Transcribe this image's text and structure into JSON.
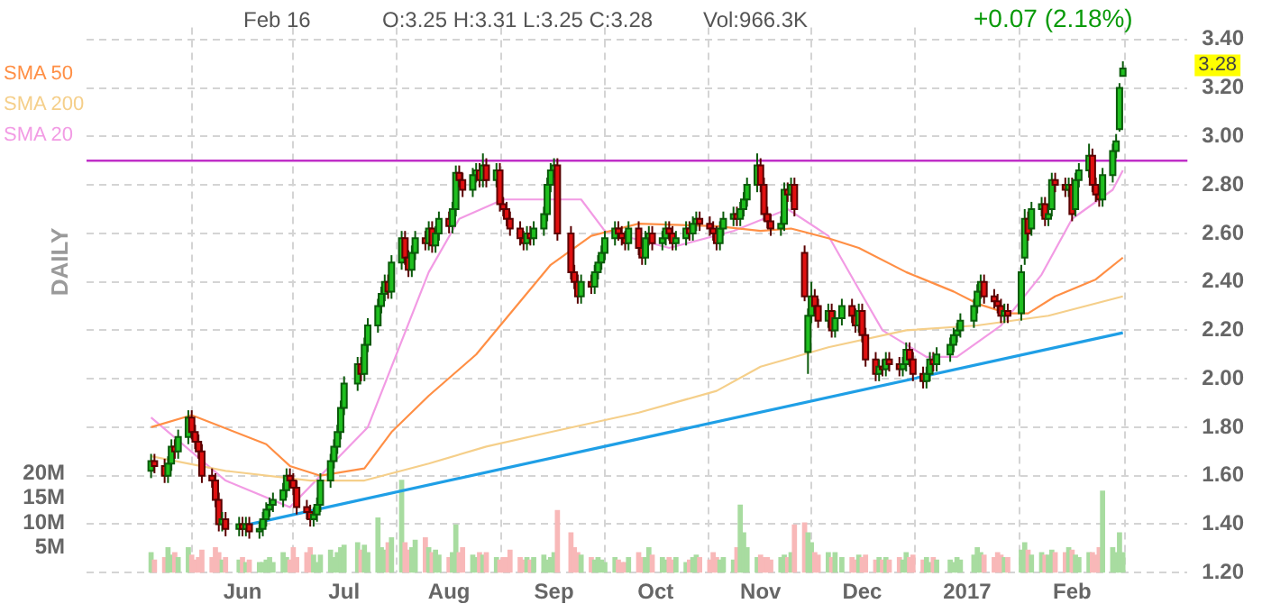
{
  "chart_data": {
    "type": "candlestick",
    "annotations": [
      "Feb 16",
      "O:3.25  H:3.31  L:3.25  C:3.28",
      "Vol:966.3K",
      "+0.07 (2.18%)",
      "DAILY",
      "3.28"
    ],
    "x": [
      "2016-05-05",
      "2016-05-06",
      "2016-05-09",
      "2016-05-10",
      "2016-05-11",
      "2016-05-12",
      "2016-05-13",
      "2016-05-16",
      "2016-05-17",
      "2016-05-18",
      "2016-05-19",
      "2016-05-20",
      "2016-05-23",
      "2016-05-24",
      "2016-05-25",
      "2016-05-26",
      "2016-05-27",
      "2016-05-31",
      "2016-06-01",
      "2016-06-02",
      "2016-06-03",
      "2016-06-06",
      "2016-06-07",
      "2016-06-08",
      "2016-06-09",
      "2016-06-10",
      "2016-06-13",
      "2016-06-14",
      "2016-06-15",
      "2016-06-16",
      "2016-06-17",
      "2016-06-20",
      "2016-06-21",
      "2016-06-22",
      "2016-06-23",
      "2016-06-24",
      "2016-06-27",
      "2016-06-28",
      "2016-06-29",
      "2016-06-30",
      "2016-07-01",
      "2016-07-05",
      "2016-07-06",
      "2016-07-07",
      "2016-07-08",
      "2016-07-11",
      "2016-07-12",
      "2016-07-13",
      "2016-07-14",
      "2016-07-15",
      "2016-07-18",
      "2016-07-19",
      "2016-07-20",
      "2016-07-21",
      "2016-07-22",
      "2016-07-25",
      "2016-07-26",
      "2016-07-27",
      "2016-07-28",
      "2016-07-29",
      "2016-08-01",
      "2016-08-02",
      "2016-08-03",
      "2016-08-04",
      "2016-08-05",
      "2016-08-08",
      "2016-08-09",
      "2016-08-10",
      "2016-08-11",
      "2016-08-12",
      "2016-08-15",
      "2016-08-16",
      "2016-08-17",
      "2016-08-18",
      "2016-08-19",
      "2016-08-22",
      "2016-08-23",
      "2016-08-24",
      "2016-08-25",
      "2016-08-26",
      "2016-08-29",
      "2016-08-30",
      "2016-08-31",
      "2016-09-01",
      "2016-09-02",
      "2016-09-06",
      "2016-09-07",
      "2016-09-08",
      "2016-09-09",
      "2016-09-12",
      "2016-09-13",
      "2016-09-14",
      "2016-09-15",
      "2016-09-16",
      "2016-09-19",
      "2016-09-20",
      "2016-09-21",
      "2016-09-22",
      "2016-09-23",
      "2016-09-26",
      "2016-09-27",
      "2016-09-28",
      "2016-09-29",
      "2016-09-30",
      "2016-10-03",
      "2016-10-04",
      "2016-10-05",
      "2016-10-06",
      "2016-10-07",
      "2016-10-10",
      "2016-10-11",
      "2016-10-12",
      "2016-10-13",
      "2016-10-14",
      "2016-10-17",
      "2016-10-18",
      "2016-10-19",
      "2016-10-20",
      "2016-10-21",
      "2016-10-24",
      "2016-10-25",
      "2016-10-26",
      "2016-10-27",
      "2016-10-28",
      "2016-10-31",
      "2016-11-01",
      "2016-11-02",
      "2016-11-03",
      "2016-11-04",
      "2016-11-07",
      "2016-11-08",
      "2016-11-09",
      "2016-11-10",
      "2016-11-11",
      "2016-11-14",
      "2016-11-15",
      "2016-11-16",
      "2016-11-17",
      "2016-11-18",
      "2016-11-21",
      "2016-11-22",
      "2016-11-23",
      "2016-11-25",
      "2016-11-28",
      "2016-11-29",
      "2016-11-30",
      "2016-12-01",
      "2016-12-02",
      "2016-12-05",
      "2016-12-06",
      "2016-12-07",
      "2016-12-08",
      "2016-12-09",
      "2016-12-12",
      "2016-12-13",
      "2016-12-14",
      "2016-12-15",
      "2016-12-16",
      "2016-12-19",
      "2016-12-20",
      "2016-12-21",
      "2016-12-22",
      "2016-12-23",
      "2016-12-27",
      "2016-12-28",
      "2016-12-29",
      "2016-12-30",
      "2017-01-03",
      "2017-01-04",
      "2017-01-05",
      "2017-01-06",
      "2017-01-09",
      "2017-01-10",
      "2017-01-11",
      "2017-01-12",
      "2017-01-13",
      "2017-01-17",
      "2017-01-18",
      "2017-01-19",
      "2017-01-20",
      "2017-01-23",
      "2017-01-24",
      "2017-01-25",
      "2017-01-26",
      "2017-01-27",
      "2017-01-30",
      "2017-01-31",
      "2017-02-01",
      "2017-02-02",
      "2017-02-03",
      "2017-02-06",
      "2017-02-07",
      "2017-02-08",
      "2017-02-09",
      "2017-02-10",
      "2017-02-13",
      "2017-02-14",
      "2017-02-15",
      "2017-02-16"
    ],
    "ohlc": [
      [
        1.62,
        1.69,
        1.59,
        1.66
      ],
      [
        1.66,
        1.69,
        1.61,
        1.64
      ],
      [
        1.64,
        1.67,
        1.57,
        1.6
      ],
      [
        1.6,
        1.68,
        1.57,
        1.65
      ],
      [
        1.65,
        1.75,
        1.62,
        1.72
      ],
      [
        1.72,
        1.75,
        1.67,
        1.7
      ],
      [
        1.7,
        1.79,
        1.67,
        1.76
      ],
      [
        1.76,
        1.87,
        1.73,
        1.84
      ],
      [
        1.84,
        1.87,
        1.75,
        1.78
      ],
      [
        1.78,
        1.81,
        1.71,
        1.74
      ],
      [
        1.74,
        1.77,
        1.67,
        1.7
      ],
      [
        1.7,
        1.73,
        1.57,
        1.6
      ],
      [
        1.6,
        1.63,
        1.55,
        1.58
      ],
      [
        1.58,
        1.61,
        1.47,
        1.5
      ],
      [
        1.5,
        1.53,
        1.37,
        1.4
      ],
      [
        1.4,
        1.45,
        1.37,
        1.42
      ],
      [
        1.42,
        1.45,
        1.35,
        1.38
      ],
      [
        1.38,
        1.43,
        1.35,
        1.4
      ],
      [
        1.4,
        1.43,
        1.35,
        1.38
      ],
      [
        1.38,
        1.43,
        1.35,
        1.4
      ],
      [
        1.4,
        1.43,
        1.34,
        1.37
      ],
      [
        1.37,
        1.41,
        1.34,
        1.38
      ],
      [
        1.38,
        1.45,
        1.35,
        1.42
      ],
      [
        1.42,
        1.49,
        1.39,
        1.46
      ],
      [
        1.46,
        1.51,
        1.43,
        1.48
      ],
      [
        1.48,
        1.53,
        1.45,
        1.5
      ],
      [
        1.5,
        1.57,
        1.47,
        1.54
      ],
      [
        1.54,
        1.63,
        1.51,
        1.6
      ],
      [
        1.6,
        1.63,
        1.55,
        1.58
      ],
      [
        1.58,
        1.61,
        1.52,
        1.55
      ],
      [
        1.55,
        1.58,
        1.44,
        1.47
      ],
      [
        1.47,
        1.5,
        1.42,
        1.45
      ],
      [
        1.45,
        1.48,
        1.39,
        1.42
      ],
      [
        1.42,
        1.47,
        1.39,
        1.44
      ],
      [
        1.44,
        1.51,
        1.41,
        1.48
      ],
      [
        1.48,
        1.61,
        1.45,
        1.58
      ],
      [
        1.58,
        1.69,
        1.55,
        1.66
      ],
      [
        1.66,
        1.75,
        1.63,
        1.72
      ],
      [
        1.72,
        1.81,
        1.69,
        1.78
      ],
      [
        1.78,
        1.91,
        1.75,
        1.88
      ],
      [
        1.88,
        2.01,
        1.85,
        1.98
      ],
      [
        1.98,
        2.09,
        1.95,
        2.06
      ],
      [
        2.06,
        2.09,
        1.99,
        2.02
      ],
      [
        2.02,
        2.17,
        1.99,
        2.14
      ],
      [
        2.14,
        2.25,
        2.11,
        2.22
      ],
      [
        2.22,
        2.33,
        2.19,
        2.3
      ],
      [
        2.3,
        2.38,
        2.27,
        2.35
      ],
      [
        2.35,
        2.43,
        2.32,
        2.4
      ],
      [
        2.4,
        2.43,
        2.33,
        2.36
      ],
      [
        2.36,
        2.51,
        2.33,
        2.48
      ],
      [
        2.48,
        2.61,
        2.45,
        2.58
      ],
      [
        2.58,
        2.61,
        2.47,
        2.5
      ],
      [
        2.5,
        2.53,
        2.42,
        2.45
      ],
      [
        2.45,
        2.55,
        2.42,
        2.52
      ],
      [
        2.52,
        2.61,
        2.49,
        2.58
      ],
      [
        2.58,
        2.61,
        2.53,
        2.56
      ],
      [
        2.56,
        2.65,
        2.53,
        2.62
      ],
      [
        2.62,
        2.65,
        2.52,
        2.55
      ],
      [
        2.55,
        2.63,
        2.52,
        2.6
      ],
      [
        2.6,
        2.69,
        2.57,
        2.66
      ],
      [
        2.66,
        2.69,
        2.6,
        2.63
      ],
      [
        2.63,
        2.73,
        2.6,
        2.7
      ],
      [
        2.7,
        2.88,
        2.67,
        2.85
      ],
      [
        2.85,
        2.88,
        2.79,
        2.82
      ],
      [
        2.82,
        2.85,
        2.75,
        2.78
      ],
      [
        2.78,
        2.87,
        2.75,
        2.84
      ],
      [
        2.84,
        2.89,
        2.81,
        2.86
      ],
      [
        2.86,
        2.89,
        2.79,
        2.82
      ],
      [
        2.82,
        2.93,
        2.79,
        2.88
      ],
      [
        2.88,
        2.91,
        2.79,
        2.82
      ],
      [
        2.82,
        2.89,
        2.79,
        2.86
      ],
      [
        2.86,
        2.89,
        2.69,
        2.72
      ],
      [
        2.72,
        2.75,
        2.67,
        2.7
      ],
      [
        2.7,
        2.73,
        2.63,
        2.66
      ],
      [
        2.66,
        2.69,
        2.59,
        2.62
      ],
      [
        2.62,
        2.65,
        2.55,
        2.58
      ],
      [
        2.58,
        2.61,
        2.53,
        2.56
      ],
      [
        2.56,
        2.63,
        2.53,
        2.6
      ],
      [
        2.6,
        2.63,
        2.55,
        2.58
      ],
      [
        2.58,
        2.65,
        2.55,
        2.62
      ],
      [
        2.62,
        2.71,
        2.59,
        2.68
      ],
      [
        2.68,
        2.83,
        2.65,
        2.8
      ],
      [
        2.8,
        2.89,
        2.77,
        2.86
      ],
      [
        2.86,
        2.91,
        2.83,
        2.88
      ],
      [
        2.88,
        2.91,
        2.57,
        2.6
      ],
      [
        2.6,
        2.63,
        2.41,
        2.44
      ],
      [
        2.44,
        2.47,
        2.37,
        2.4
      ],
      [
        2.4,
        2.43,
        2.31,
        2.34
      ],
      [
        2.34,
        2.43,
        2.31,
        2.4
      ],
      [
        2.4,
        2.43,
        2.35,
        2.38
      ],
      [
        2.38,
        2.47,
        2.35,
        2.44
      ],
      [
        2.44,
        2.51,
        2.41,
        2.48
      ],
      [
        2.48,
        2.55,
        2.45,
        2.52
      ],
      [
        2.52,
        2.61,
        2.49,
        2.58
      ],
      [
        2.58,
        2.65,
        2.55,
        2.62
      ],
      [
        2.62,
        2.65,
        2.57,
        2.6
      ],
      [
        2.6,
        2.63,
        2.55,
        2.58
      ],
      [
        2.58,
        2.61,
        2.53,
        2.56
      ],
      [
        2.56,
        2.65,
        2.53,
        2.62
      ],
      [
        2.62,
        2.65,
        2.51,
        2.54
      ],
      [
        2.54,
        2.57,
        2.47,
        2.5
      ],
      [
        2.5,
        2.61,
        2.47,
        2.58
      ],
      [
        2.58,
        2.63,
        2.55,
        2.6
      ],
      [
        2.6,
        2.63,
        2.53,
        2.56
      ],
      [
        2.56,
        2.61,
        2.53,
        2.58
      ],
      [
        2.58,
        2.65,
        2.55,
        2.62
      ],
      [
        2.62,
        2.65,
        2.57,
        2.6
      ],
      [
        2.6,
        2.63,
        2.53,
        2.56
      ],
      [
        2.56,
        2.61,
        2.53,
        2.58
      ],
      [
        2.58,
        2.65,
        2.55,
        2.62
      ],
      [
        2.62,
        2.65,
        2.57,
        2.6
      ],
      [
        2.6,
        2.67,
        2.57,
        2.64
      ],
      [
        2.64,
        2.69,
        2.61,
        2.66
      ],
      [
        2.66,
        2.69,
        2.61,
        2.64
      ],
      [
        2.64,
        2.67,
        2.59,
        2.62
      ],
      [
        2.62,
        2.65,
        2.57,
        2.6
      ],
      [
        2.6,
        2.63,
        2.53,
        2.56
      ],
      [
        2.56,
        2.65,
        2.53,
        2.62
      ],
      [
        2.62,
        2.69,
        2.59,
        2.66
      ],
      [
        2.66,
        2.71,
        2.63,
        2.68
      ],
      [
        2.68,
        2.71,
        2.63,
        2.66
      ],
      [
        2.66,
        2.73,
        2.63,
        2.7
      ],
      [
        2.7,
        2.77,
        2.67,
        2.74
      ],
      [
        2.74,
        2.83,
        2.71,
        2.8
      ],
      [
        2.8,
        2.93,
        2.77,
        2.88
      ],
      [
        2.88,
        2.91,
        2.77,
        2.8
      ],
      [
        2.8,
        2.83,
        2.65,
        2.68
      ],
      [
        2.68,
        2.71,
        2.62,
        2.65
      ],
      [
        2.65,
        2.68,
        2.59,
        2.62
      ],
      [
        2.62,
        2.67,
        2.59,
        2.64
      ],
      [
        2.64,
        2.81,
        2.61,
        2.78
      ],
      [
        2.78,
        2.81,
        2.73,
        2.76
      ],
      [
        2.76,
        2.83,
        2.73,
        2.8
      ],
      [
        2.8,
        2.83,
        2.67,
        2.7
      ],
      [
        2.52,
        2.55,
        2.32,
        2.34
      ],
      [
        2.11,
        2.29,
        2.02,
        2.26
      ],
      [
        2.26,
        2.4,
        2.23,
        2.34
      ],
      [
        2.34,
        2.37,
        2.27,
        2.3
      ],
      [
        2.3,
        2.33,
        2.21,
        2.24
      ],
      [
        2.24,
        2.31,
        2.21,
        2.28
      ],
      [
        2.28,
        2.31,
        2.17,
        2.2
      ],
      [
        2.2,
        2.28,
        2.17,
        2.25
      ],
      [
        2.25,
        2.33,
        2.22,
        2.3
      ],
      [
        2.3,
        2.33,
        2.23,
        2.26
      ],
      [
        2.26,
        2.29,
        2.19,
        2.22
      ],
      [
        2.22,
        2.31,
        2.19,
        2.28
      ],
      [
        2.28,
        2.31,
        2.15,
        2.18
      ],
      [
        2.18,
        2.21,
        2.05,
        2.08
      ],
      [
        2.08,
        2.11,
        1.99,
        2.02
      ],
      [
        2.02,
        2.08,
        1.99,
        2.05
      ],
      [
        2.05,
        2.08,
        2.01,
        2.04
      ],
      [
        2.04,
        2.11,
        2.01,
        2.08
      ],
      [
        2.08,
        2.11,
        2.03,
        2.06
      ],
      [
        2.06,
        2.09,
        2.01,
        2.04
      ],
      [
        2.04,
        2.09,
        2.01,
        2.06
      ],
      [
        2.06,
        2.15,
        2.03,
        2.12
      ],
      [
        2.12,
        2.15,
        2.05,
        2.08
      ],
      [
        2.08,
        2.11,
        1.99,
        2.02
      ],
      [
        2.02,
        2.05,
        1.96,
        1.99
      ],
      [
        1.99,
        2.05,
        1.96,
        2.02
      ],
      [
        2.02,
        2.11,
        1.99,
        2.08
      ],
      [
        2.08,
        2.11,
        2.03,
        2.06
      ],
      [
        2.06,
        2.13,
        2.03,
        2.1
      ],
      [
        2.1,
        2.17,
        2.07,
        2.14
      ],
      [
        2.14,
        2.21,
        2.11,
        2.18
      ],
      [
        2.18,
        2.23,
        2.15,
        2.2
      ],
      [
        2.2,
        2.27,
        2.17,
        2.24
      ],
      [
        2.24,
        2.33,
        2.21,
        2.3
      ],
      [
        2.3,
        2.39,
        2.27,
        2.36
      ],
      [
        2.36,
        2.43,
        2.33,
        2.4
      ],
      [
        2.4,
        2.43,
        2.31,
        2.34
      ],
      [
        2.34,
        2.37,
        2.29,
        2.32
      ],
      [
        2.32,
        2.35,
        2.27,
        2.3
      ],
      [
        2.3,
        2.33,
        2.23,
        2.26
      ],
      [
        2.26,
        2.31,
        2.23,
        2.28
      ],
      [
        2.28,
        2.31,
        2.23,
        2.26
      ],
      [
        2.27,
        2.47,
        2.24,
        2.44
      ],
      [
        2.5,
        2.7,
        2.47,
        2.66
      ],
      [
        2.66,
        2.69,
        2.57,
        2.6
      ],
      [
        2.62,
        2.73,
        2.59,
        2.7
      ],
      [
        2.7,
        2.75,
        2.67,
        2.72
      ],
      [
        2.72,
        2.75,
        2.63,
        2.66
      ],
      [
        2.66,
        2.71,
        2.63,
        2.68
      ],
      [
        2.7,
        2.85,
        2.67,
        2.82
      ],
      [
        2.82,
        2.85,
        2.77,
        2.8
      ],
      [
        2.8,
        2.83,
        2.75,
        2.78
      ],
      [
        2.78,
        2.83,
        2.75,
        2.8
      ],
      [
        2.8,
        2.83,
        2.65,
        2.68
      ],
      [
        2.7,
        2.85,
        2.67,
        2.82
      ],
      [
        2.82,
        2.89,
        2.79,
        2.86
      ],
      [
        2.86,
        2.97,
        2.83,
        2.92
      ],
      [
        2.92,
        2.95,
        2.77,
        2.8
      ],
      [
        2.8,
        2.83,
        2.73,
        2.76
      ],
      [
        2.76,
        2.79,
        2.71,
        2.74
      ],
      [
        2.74,
        2.87,
        2.71,
        2.84
      ],
      [
        2.84,
        2.97,
        2.81,
        2.94
      ],
      [
        2.94,
        3.01,
        2.91,
        2.98
      ],
      [
        3.03,
        3.22,
        3.02,
        3.2
      ],
      [
        3.25,
        3.31,
        3.25,
        3.28
      ]
    ],
    "series": [
      {
        "name": "SMA 50",
        "type": "line",
        "color": "#ff8f45",
        "x": [
          "2016-05-05",
          "2016-05-17",
          "2016-06-08",
          "2016-06-15",
          "2016-06-24",
          "2016-07-07",
          "2016-07-15",
          "2016-07-26",
          "2016-08-09",
          "2016-08-31",
          "2016-09-12",
          "2016-09-26",
          "2016-10-19",
          "2016-11-01",
          "2016-11-10",
          "2016-11-21",
          "2016-11-30",
          "2016-12-14",
          "2016-12-28",
          "2017-01-04",
          "2017-01-13",
          "2017-01-19",
          "2017-01-27",
          "2017-02-08",
          "2017-02-16"
        ],
        "values": [
          1.8,
          1.85,
          1.73,
          1.64,
          1.6,
          1.63,
          1.78,
          1.93,
          2.1,
          2.47,
          2.59,
          2.64,
          2.63,
          2.61,
          2.62,
          2.58,
          2.54,
          2.44,
          2.36,
          2.31,
          2.27,
          2.27,
          2.34,
          2.41,
          2.5
        ]
      },
      {
        "name": "SMA 200",
        "type": "line",
        "color": "#f5cf8a",
        "x": [
          "2016-05-05",
          "2016-05-27",
          "2016-06-21",
          "2016-07-07",
          "2016-07-26",
          "2016-08-12",
          "2016-08-31",
          "2016-09-26",
          "2016-10-19",
          "2016-11-01",
          "2016-11-21",
          "2016-12-14",
          "2017-01-04",
          "2017-01-25",
          "2017-02-16"
        ],
        "values": [
          1.68,
          1.62,
          1.58,
          1.58,
          1.65,
          1.72,
          1.78,
          1.86,
          1.95,
          2.05,
          2.13,
          2.2,
          2.22,
          2.26,
          2.34
        ]
      },
      {
        "name": "SMA 20",
        "type": "line",
        "color": "#f29be4",
        "x": [
          "2016-05-05",
          "2016-05-27",
          "2016-06-15",
          "2016-07-08",
          "2016-07-26",
          "2016-08-04",
          "2016-08-17",
          "2016-09-09",
          "2016-09-16",
          "2016-10-05",
          "2016-10-24",
          "2016-11-09",
          "2016-11-21",
          "2016-11-30",
          "2016-12-07",
          "2016-12-20",
          "2016-12-29",
          "2017-01-11",
          "2017-01-23",
          "2017-02-01",
          "2017-02-13",
          "2017-02-16"
        ],
        "values": [
          1.84,
          1.58,
          1.47,
          1.8,
          2.44,
          2.66,
          2.74,
          2.74,
          2.61,
          2.54,
          2.61,
          2.7,
          2.59,
          2.37,
          2.2,
          2.09,
          2.09,
          2.22,
          2.43,
          2.66,
          2.78,
          2.86
        ]
      },
      {
        "type": "line",
        "color": "#1f9fe6",
        "x": [
          "2016-05-31",
          "2017-02-16"
        ],
        "values": [
          1.39,
          2.19
        ]
      },
      {
        "type": "bar",
        "axis": "y2",
        "values": [
          4,
          2.5,
          3,
          5,
          3.5,
          4,
          3,
          5,
          3.5,
          2.5,
          3,
          4.5,
          3,
          5,
          4,
          2.5,
          3,
          2.5,
          3,
          2,
          2.5,
          2,
          2,
          2.5,
          3,
          2,
          4,
          3,
          2.5,
          5,
          3,
          4,
          5,
          3.5,
          2,
          3.5,
          4.5,
          3,
          4,
          5,
          5.5,
          6,
          4.5,
          5.5,
          4,
          11,
          5,
          4.5,
          6,
          7,
          18.6,
          6,
          4.5,
          5,
          6.5,
          7,
          5,
          4,
          4.5,
          3.5,
          3,
          4,
          9.6,
          4,
          5,
          3.5,
          3,
          4,
          3.5,
          4,
          3,
          2.5,
          3,
          3,
          4.5,
          3,
          2.5,
          3,
          2.5,
          3,
          3.5,
          2.5,
          3,
          4,
          12.5,
          8,
          5,
          4,
          3.5,
          3,
          2.5,
          3,
          2.5,
          2,
          3,
          2.5,
          2,
          2,
          3,
          4,
          3,
          3,
          5,
          3.5,
          3,
          2.5,
          3,
          2.5,
          3,
          2,
          2.5,
          3,
          3.5,
          3,
          2.5,
          4,
          3,
          2.5,
          3,
          2.5,
          5,
          13.6,
          8,
          5,
          3,
          3.5,
          3,
          3,
          2.5,
          3,
          3.5,
          3,
          4,
          9.6,
          10,
          8,
          6,
          4,
          3.5,
          4,
          3,
          4,
          3,
          3,
          2.5,
          3.5,
          3,
          3.5,
          2.5,
          3,
          2.5,
          3,
          2.5,
          3,
          2.5,
          4,
          3,
          3.5,
          2.5,
          3,
          2,
          3,
          2.5,
          2.5,
          2,
          3,
          2.5,
          3.5,
          5,
          4,
          3.5,
          3,
          4,
          3.5,
          3,
          3,
          4.5,
          6,
          4.5,
          3.5,
          4,
          3.5,
          3.5,
          4.5,
          4,
          4,
          5,
          4.5,
          3.5,
          3,
          4,
          4,
          3.5,
          5,
          16.4,
          5,
          4,
          8,
          4
        ],
        "colors": [
          "#a8dca0",
          "#f8b8b8",
          "#f8b8b8",
          "#a8dca0",
          "#a8dca0",
          "#f8b8b8",
          "#a8dca0",
          "#a8dca0",
          "#f8b8b8",
          "#f8b8b8",
          "#f8b8b8",
          "#f8b8b8",
          "#f8b8b8",
          "#f8b8b8",
          "#f8b8b8",
          "#a8dca0",
          "#f8b8b8",
          "#a8dca0",
          "#f8b8b8",
          "#a8dca0",
          "#f8b8b8",
          "#a8dca0",
          "#a8dca0",
          "#a8dca0",
          "#a8dca0",
          "#a8dca0",
          "#a8dca0",
          "#a8dca0",
          "#f8b8b8",
          "#f8b8b8",
          "#f8b8b8",
          "#f8b8b8",
          "#f8b8b8",
          "#a8dca0",
          "#a8dca0",
          "#a8dca0",
          "#a8dca0",
          "#a8dca0",
          "#a8dca0",
          "#a8dca0",
          "#a8dca0",
          "#a8dca0",
          "#f8b8b8",
          "#a8dca0",
          "#a8dca0",
          "#a8dca0",
          "#a8dca0",
          "#a8dca0",
          "#f8b8b8",
          "#a8dca0",
          "#a8dca0",
          "#f8b8b8",
          "#f8b8b8",
          "#a8dca0",
          "#a8dca0",
          "#f8b8b8",
          "#a8dca0",
          "#f8b8b8",
          "#a8dca0",
          "#a8dca0",
          "#f8b8b8",
          "#a8dca0",
          "#a8dca0",
          "#f8b8b8",
          "#f8b8b8",
          "#a8dca0",
          "#a8dca0",
          "#f8b8b8",
          "#a8dca0",
          "#f8b8b8",
          "#a8dca0",
          "#f8b8b8",
          "#f8b8b8",
          "#f8b8b8",
          "#f8b8b8",
          "#f8b8b8",
          "#f8b8b8",
          "#a8dca0",
          "#f8b8b8",
          "#a8dca0",
          "#a8dca0",
          "#a8dca0",
          "#a8dca0",
          "#a8dca0",
          "#f8b8b8",
          "#f8b8b8",
          "#f8b8b8",
          "#f8b8b8",
          "#a8dca0",
          "#f8b8b8",
          "#a8dca0",
          "#a8dca0",
          "#a8dca0",
          "#a8dca0",
          "#a8dca0",
          "#f8b8b8",
          "#f8b8b8",
          "#f8b8b8",
          "#a8dca0",
          "#f8b8b8",
          "#f8b8b8",
          "#a8dca0",
          "#a8dca0",
          "#f8b8b8",
          "#a8dca0",
          "#a8dca0",
          "#f8b8b8",
          "#f8b8b8",
          "#a8dca0",
          "#a8dca0",
          "#f8b8b8",
          "#a8dca0",
          "#a8dca0",
          "#f8b8b8",
          "#f8b8b8",
          "#f8b8b8",
          "#f8b8b8",
          "#a8dca0",
          "#a8dca0",
          "#a8dca0",
          "#f8b8b8",
          "#a8dca0",
          "#a8dca0",
          "#a8dca0",
          "#a8dca0",
          "#f8b8b8",
          "#f8b8b8",
          "#f8b8b8",
          "#f8b8b8",
          "#a8dca0",
          "#a8dca0",
          "#f8b8b8",
          "#a8dca0",
          "#f8b8b8",
          "#f8b8b8",
          "#a8dca0",
          "#a8dca0",
          "#f8b8b8",
          "#f8b8b8",
          "#a8dca0",
          "#f8b8b8",
          "#a8dca0",
          "#a8dca0",
          "#f8b8b8",
          "#f8b8b8",
          "#a8dca0",
          "#f8b8b8",
          "#f8b8b8",
          "#f8b8b8",
          "#a8dca0",
          "#f8b8b8",
          "#a8dca0",
          "#f8b8b8",
          "#f8b8b8",
          "#a8dca0",
          "#a8dca0",
          "#f8b8b8",
          "#f8b8b8",
          "#f8b8b8",
          "#a8dca0",
          "#a8dca0",
          "#f8b8b8",
          "#a8dca0",
          "#a8dca0",
          "#a8dca0",
          "#a8dca0",
          "#a8dca0",
          "#a8dca0",
          "#a8dca0",
          "#a8dca0",
          "#f8b8b8",
          "#f8b8b8",
          "#f8b8b8",
          "#f8b8b8",
          "#a8dca0",
          "#f8b8b8",
          "#a8dca0",
          "#a8dca0",
          "#f8b8b8",
          "#a8dca0",
          "#a8dca0",
          "#f8b8b8",
          "#a8dca0",
          "#a8dca0",
          "#f8b8b8",
          "#f8b8b8",
          "#a8dca0",
          "#f8b8b8",
          "#a8dca0",
          "#a8dca0",
          "#a8dca0",
          "#f8b8b8",
          "#f8b8b8",
          "#f8b8b8",
          "#a8dca0",
          "#a8dca0",
          "#a8dca0",
          "#a8dca0",
          "#a8dca0"
        ]
      }
    ],
    "ref_lines": [
      {
        "axis": "y",
        "value": 2.9,
        "color": "#c030c8"
      }
    ],
    "xlim": [
      "2016-05-04",
      "2017-02-17"
    ],
    "xticks": [
      {
        "value": "2016-06-01",
        "label": "Jun"
      },
      {
        "value": "2016-07-01",
        "label": "Jul"
      },
      {
        "value": "2016-08-01",
        "label": "Aug"
      },
      {
        "value": "2016-09-01",
        "label": "Sep"
      },
      {
        "value": "2016-10-01",
        "label": "Oct"
      },
      {
        "value": "2016-11-01",
        "label": "Nov"
      },
      {
        "value": "2016-12-01",
        "label": "Dec"
      },
      {
        "value": "2017-01-01",
        "label": "2017"
      },
      {
        "value": "2017-02-01",
        "label": "Feb"
      }
    ],
    "ylim": [
      1.2,
      3.45
    ],
    "yticks": [
      {
        "value": 1.2,
        "label": "1.20"
      },
      {
        "value": 1.4,
        "label": "1.40"
      },
      {
        "value": 1.6,
        "label": "1.60"
      },
      {
        "value": 1.8,
        "label": "1.80"
      },
      {
        "value": 2.0,
        "label": "2.00"
      },
      {
        "value": 2.2,
        "label": "2.20"
      },
      {
        "value": 2.4,
        "label": "2.40"
      },
      {
        "value": 2.6,
        "label": "2.60"
      },
      {
        "value": 2.8,
        "label": "2.80"
      },
      {
        "value": 3.0,
        "label": "3.00"
      },
      {
        "value": 3.2,
        "label": "3.20"
      },
      {
        "value": 3.4,
        "label": "3.40"
      }
    ],
    "y2lim": [
      0,
      110
    ],
    "y2ticks": [
      {
        "value": 5,
        "label": "5M"
      },
      {
        "value": 10,
        "label": "10M"
      },
      {
        "value": 15,
        "label": "15M"
      },
      {
        "value": 20,
        "label": "20M"
      }
    ],
    "grid": true,
    "legend": "top left",
    "marker": "none",
    "line_style": "solid"
  }
}
